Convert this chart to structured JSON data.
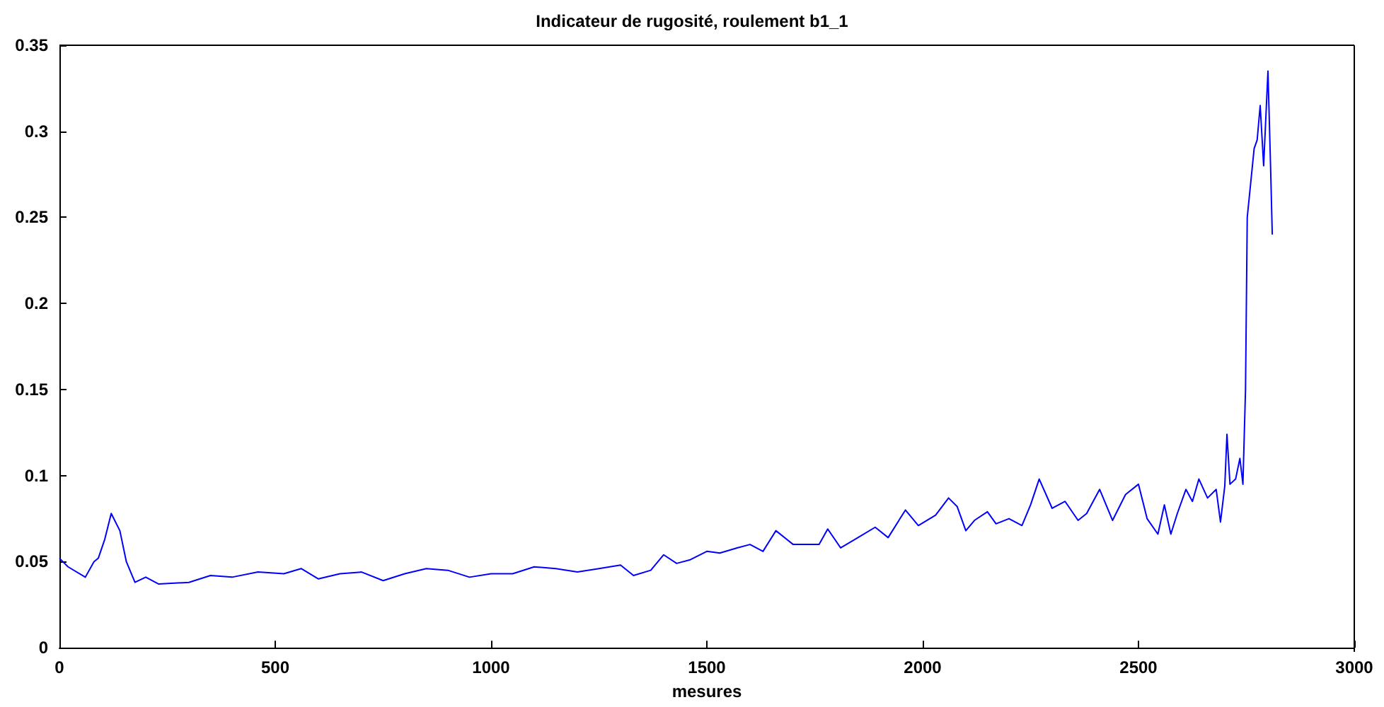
{
  "chart_data": {
    "type": "line",
    "title": "Indicateur de rugosité, roulement b1_1",
    "xlabel": "mesures",
    "x": [
      0,
      20,
      60,
      80,
      90,
      105,
      120,
      140,
      155,
      175,
      200,
      230,
      300,
      350,
      400,
      460,
      520,
      560,
      600,
      650,
      700,
      750,
      800,
      850,
      900,
      950,
      1000,
      1050,
      1100,
      1150,
      1200,
      1250,
      1300,
      1330,
      1370,
      1400,
      1430,
      1460,
      1500,
      1530,
      1570,
      1600,
      1630,
      1660,
      1700,
      1760,
      1780,
      1810,
      1850,
      1890,
      1920,
      1960,
      1990,
      2030,
      2060,
      2080,
      2100,
      2120,
      2150,
      2170,
      2200,
      2230,
      2250,
      2270,
      2300,
      2330,
      2360,
      2380,
      2410,
      2440,
      2470,
      2500,
      2520,
      2545,
      2560,
      2575,
      2590,
      2610,
      2625,
      2640,
      2660,
      2680,
      2690,
      2700,
      2705,
      2712,
      2725,
      2735,
      2742,
      2748,
      2752,
      2760,
      2768,
      2775,
      2782,
      2790,
      2800,
      2806,
      2810
    ],
    "series": [
      {
        "color": "#0000ff",
        "values": [
          0.052,
          0.047,
          0.041,
          0.05,
          0.052,
          0.063,
          0.078,
          0.068,
          0.05,
          0.038,
          0.041,
          0.037,
          0.038,
          0.042,
          0.041,
          0.044,
          0.043,
          0.046,
          0.04,
          0.043,
          0.044,
          0.039,
          0.043,
          0.046,
          0.045,
          0.041,
          0.043,
          0.043,
          0.047,
          0.046,
          0.044,
          0.046,
          0.048,
          0.042,
          0.045,
          0.054,
          0.049,
          0.051,
          0.056,
          0.055,
          0.058,
          0.06,
          0.056,
          0.068,
          0.06,
          0.06,
          0.069,
          0.058,
          0.064,
          0.07,
          0.064,
          0.08,
          0.071,
          0.077,
          0.087,
          0.082,
          0.068,
          0.074,
          0.079,
          0.072,
          0.075,
          0.071,
          0.083,
          0.098,
          0.081,
          0.085,
          0.074,
          0.078,
          0.092,
          0.074,
          0.089,
          0.095,
          0.075,
          0.066,
          0.083,
          0.066,
          0.078,
          0.092,
          0.085,
          0.098,
          0.087,
          0.092,
          0.073,
          0.094,
          0.124,
          0.095,
          0.098,
          0.11,
          0.095,
          0.15,
          0.25,
          0.27,
          0.29,
          0.295,
          0.315,
          0.28,
          0.335,
          0.28,
          0.24
        ]
      }
    ],
    "xlim": [
      0,
      3000
    ],
    "xticks": [
      0,
      500,
      1000,
      1500,
      2000,
      2500,
      3000
    ],
    "ylim": [
      0,
      0.35
    ],
    "yticks": [
      0,
      0.05,
      0.1,
      0.15,
      0.2,
      0.25,
      0.3,
      0.35
    ],
    "grid": false,
    "marker": "none",
    "line_style": "solid"
  }
}
